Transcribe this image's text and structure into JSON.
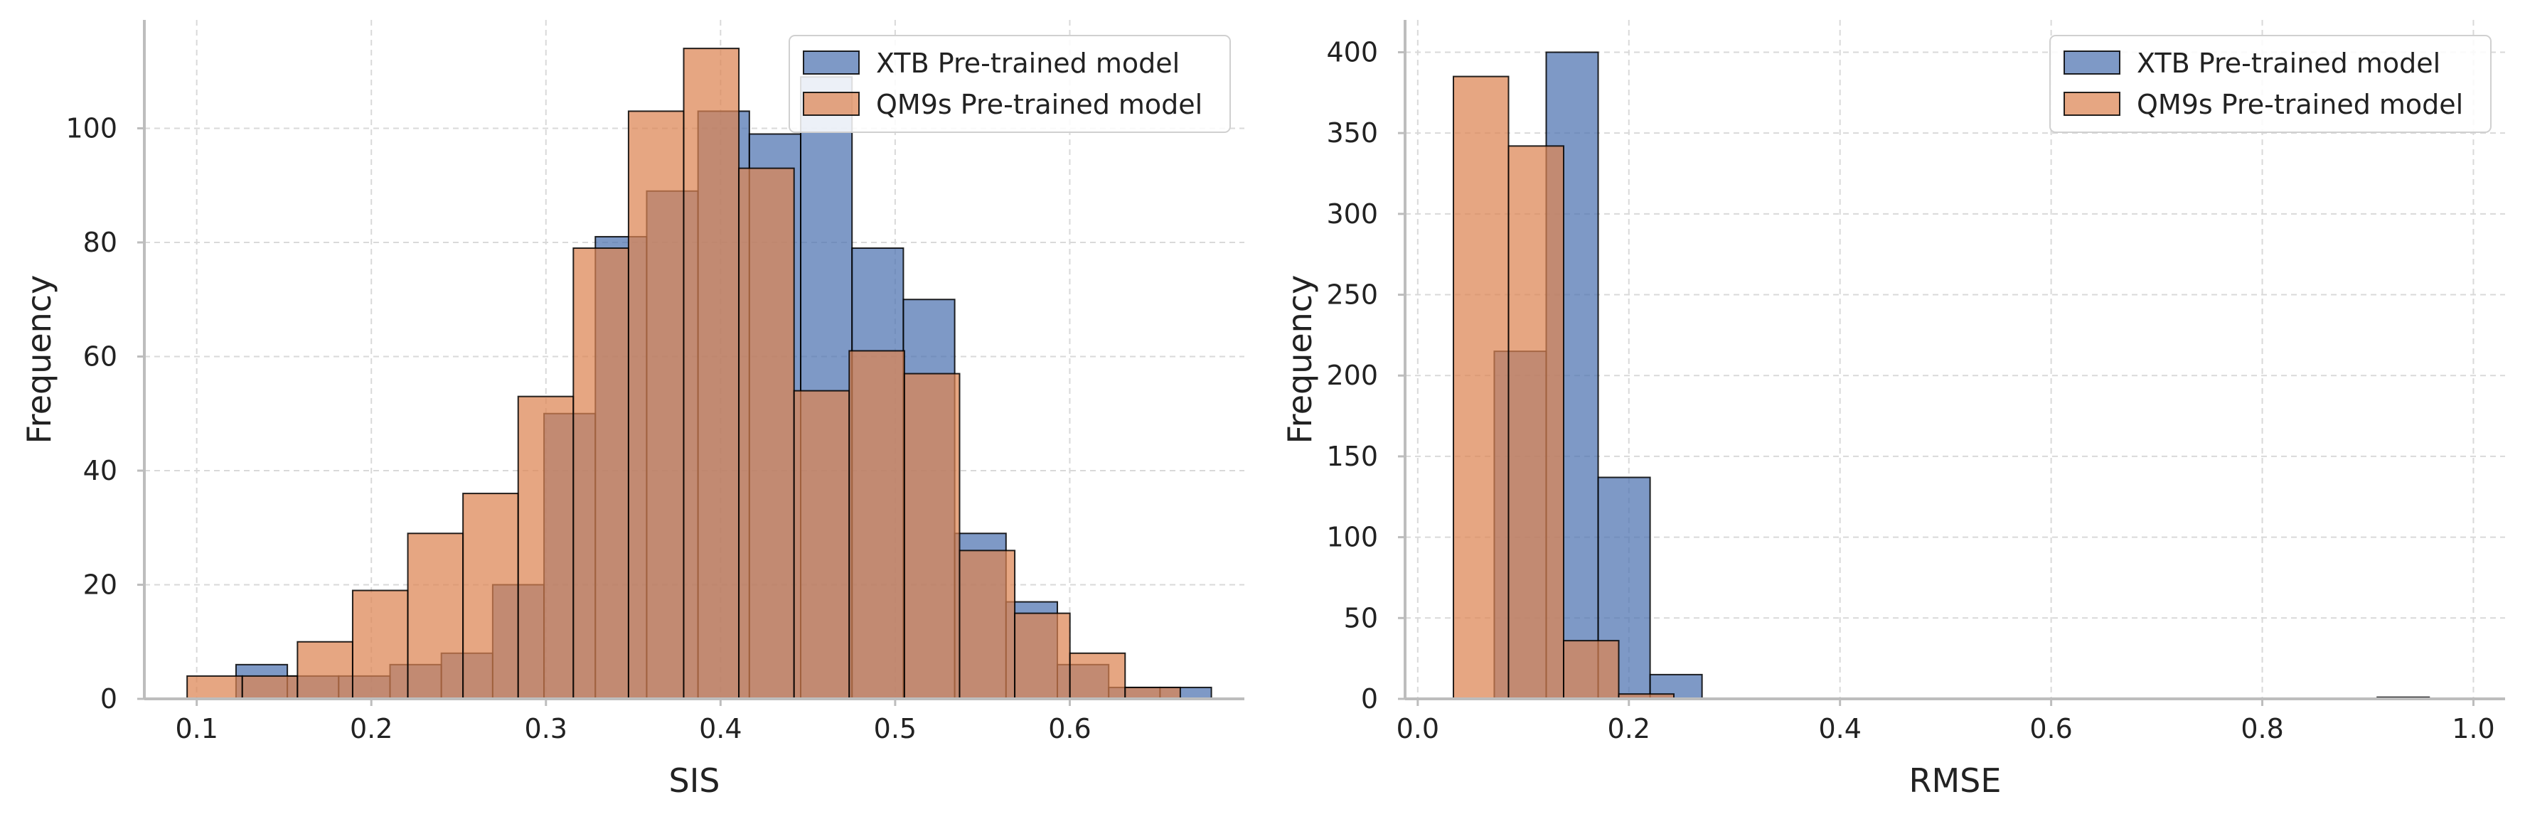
{
  "colors": {
    "xtb": "#4C72B0",
    "qm9s": "#DD8452",
    "grid": "#d9d9d9",
    "spine": "#bdbdbd",
    "bar_edge": "#000000"
  },
  "chart_data": [
    {
      "type": "bar",
      "subtype": "histogram",
      "xlabel": "SIS",
      "ylabel": "Frequency",
      "xlim": [
        0.07,
        0.7
      ],
      "ylim": [
        0,
        119
      ],
      "xticks": [
        0.1,
        0.2,
        0.3,
        0.4,
        0.5,
        0.6
      ],
      "xtick_labels": [
        "0.1",
        "0.2",
        "0.3",
        "0.4",
        "0.5",
        "0.6"
      ],
      "yticks": [
        0,
        20,
        40,
        60,
        80,
        100
      ],
      "ytick_labels": [
        "0",
        "20",
        "40",
        "60",
        "80",
        "100"
      ],
      "grid": true,
      "legend_position": "top-right",
      "series": [
        {
          "name": "XTB Pre-trained model",
          "color_key": "xtb",
          "bin_start": 0.1225,
          "bin_width": 0.0294,
          "values": [
            6,
            4,
            4,
            6,
            8,
            20,
            50,
            81,
            89,
            103,
            99,
            109,
            79,
            70,
            29,
            17,
            6,
            2,
            2
          ]
        },
        {
          "name": "QM9s Pre-trained model",
          "color_key": "qm9s",
          "bin_start": 0.0945,
          "bin_width": 0.0316,
          "values": [
            4,
            4,
            10,
            19,
            29,
            36,
            53,
            79,
            103,
            114,
            93,
            54,
            61,
            57,
            26,
            15,
            8,
            2
          ]
        }
      ]
    },
    {
      "type": "bar",
      "subtype": "histogram",
      "xlabel": "RMSE",
      "ylabel": "Frequency",
      "xlim": [
        -0.012,
        1.03
      ],
      "ylim": [
        0,
        420
      ],
      "xticks": [
        0.0,
        0.2,
        0.4,
        0.6,
        0.8,
        1.0
      ],
      "xtick_labels": [
        "0.0",
        "0.2",
        "0.4",
        "0.6",
        "0.8",
        "1.0"
      ],
      "yticks": [
        0,
        50,
        100,
        150,
        200,
        250,
        300,
        350,
        400
      ],
      "ytick_labels": [
        "0",
        "50",
        "100",
        "150",
        "200",
        "250",
        "300",
        "350",
        "400"
      ],
      "grid": true,
      "legend_position": "top-right",
      "series": [
        {
          "name": "XTB Pre-trained model",
          "color_key": "xtb",
          "bin_start": 0.0725,
          "bin_width": 0.0492,
          "values": [
            215,
            400,
            137,
            15,
            0,
            0,
            0,
            0,
            0,
            0,
            0,
            0,
            0,
            0,
            0,
            0,
            0,
            1
          ]
        },
        {
          "name": "QM9s Pre-trained model",
          "color_key": "qm9s",
          "bin_start": 0.0338,
          "bin_width": 0.0522,
          "values": [
            385,
            342,
            36,
            3
          ]
        }
      ]
    }
  ]
}
